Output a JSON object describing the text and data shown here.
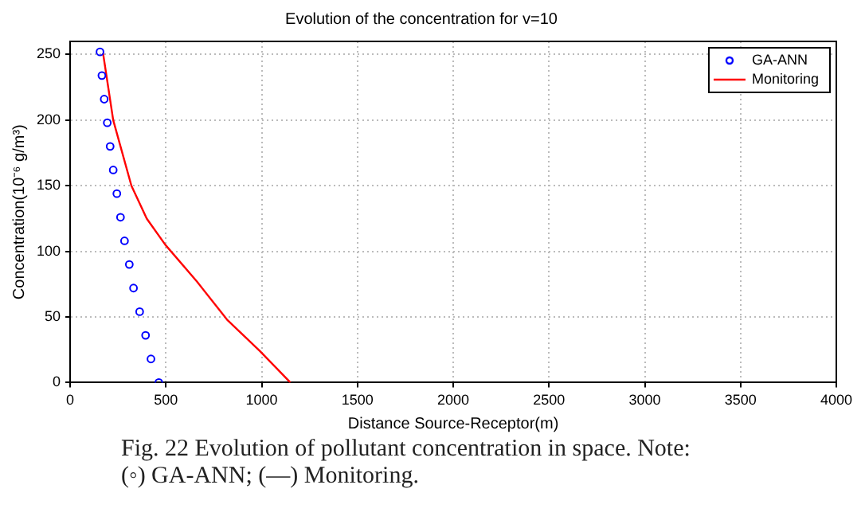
{
  "chart_data": {
    "type": "scatter",
    "title": "Evolution of the concentration for v=10",
    "xlabel": "Distance Source-Receptor(m)",
    "ylabel": "Concentration(10⁻⁶ g/m³)",
    "series": [
      {
        "name": "GA-ANN",
        "type": "scatter",
        "color": "#0000ff",
        "marker": "circle",
        "x": [
          156,
          166,
          178,
          194,
          209,
          225,
          244,
          263,
          284,
          309,
          331,
          363,
          394,
          422,
          463
        ],
        "values": [
          252,
          234,
          216,
          198,
          180,
          162,
          144,
          126,
          108,
          90,
          72,
          54,
          36,
          18,
          0
        ]
      },
      {
        "name": "Monitoring",
        "type": "line",
        "color": "#ff0000",
        "marker": "none",
        "line_style": "solid",
        "x": [
          172,
          225,
          320,
          400,
          497,
          662,
          819,
          991,
          1150
        ],
        "values": [
          251,
          200,
          150,
          125,
          105,
          77,
          48,
          24,
          0
        ]
      }
    ],
    "xlim": [
      0,
      4000
    ],
    "xticks": [
      0,
      500,
      1000,
      1500,
      2000,
      2500,
      3000,
      3500,
      4000
    ],
    "ylim": [
      0,
      260
    ],
    "yticks": [
      0,
      50,
      100,
      150,
      200,
      250
    ],
    "grid": true,
    "legend": "top right",
    "annotations": [
      "Fig. 22  Evolution of pollutant concentration in space. Note:",
      "(◦) GA-ANN; (—) Monitoring."
    ]
  }
}
